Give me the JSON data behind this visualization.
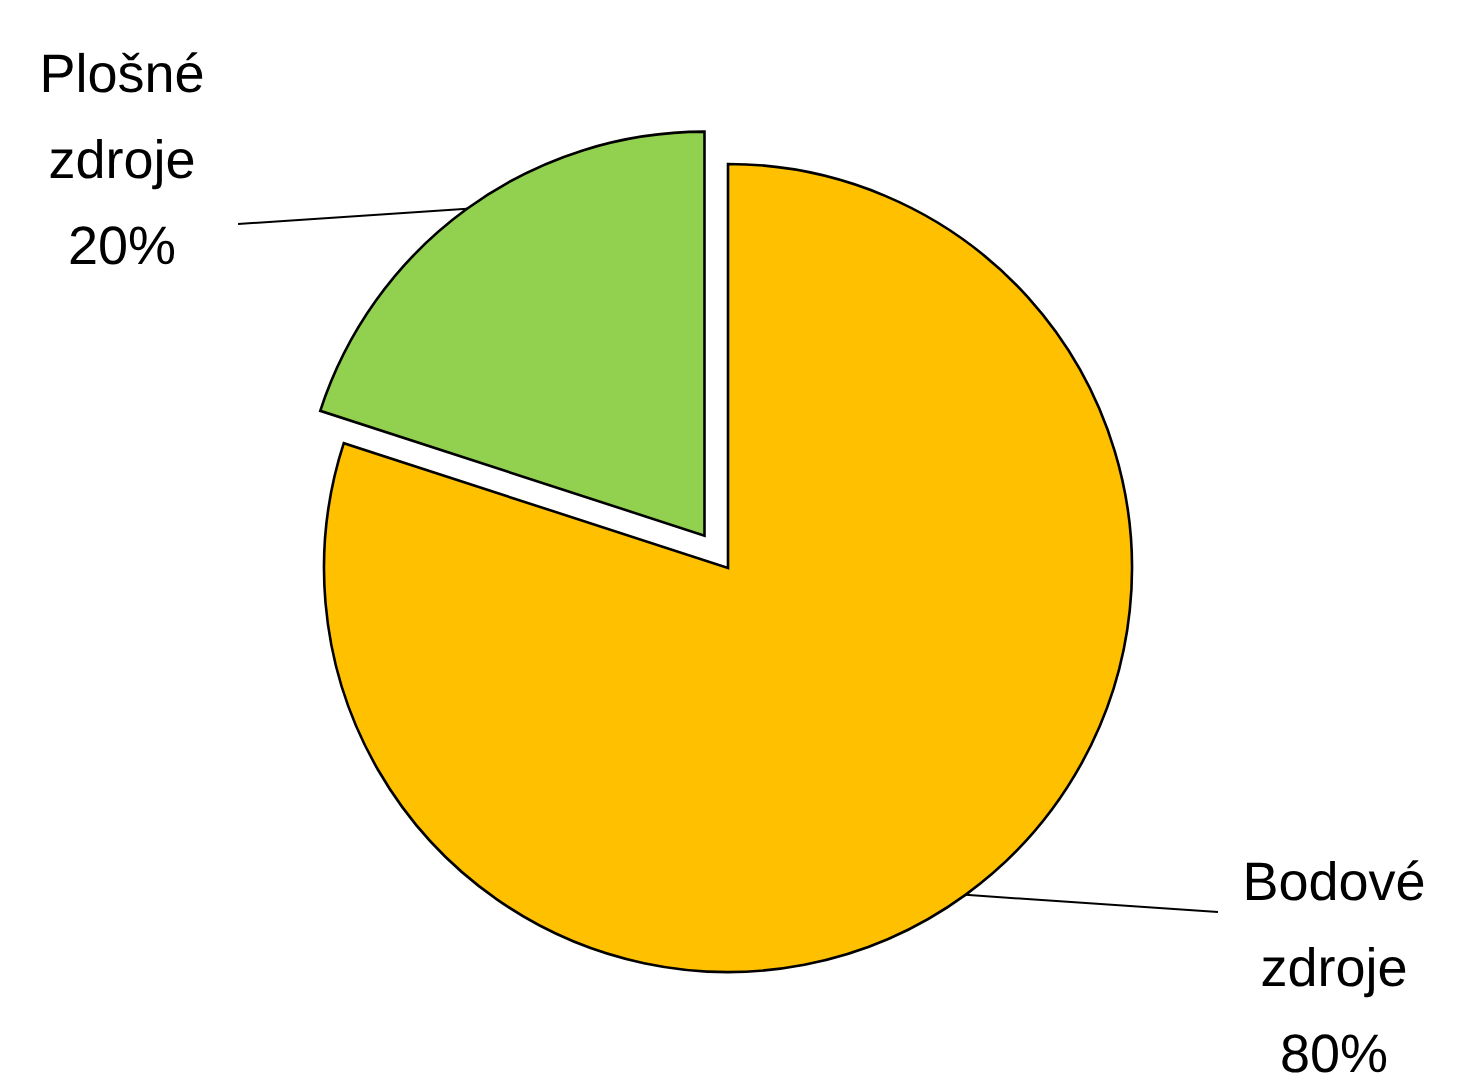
{
  "chart_data": {
    "type": "pie",
    "categories": [
      "Bodové zdroje",
      "Plošné zdroje"
    ],
    "values": [
      80,
      20
    ],
    "colors": [
      "#ffc000",
      "#92d050"
    ],
    "value_labels": [
      "80%",
      "20%"
    ]
  }
}
